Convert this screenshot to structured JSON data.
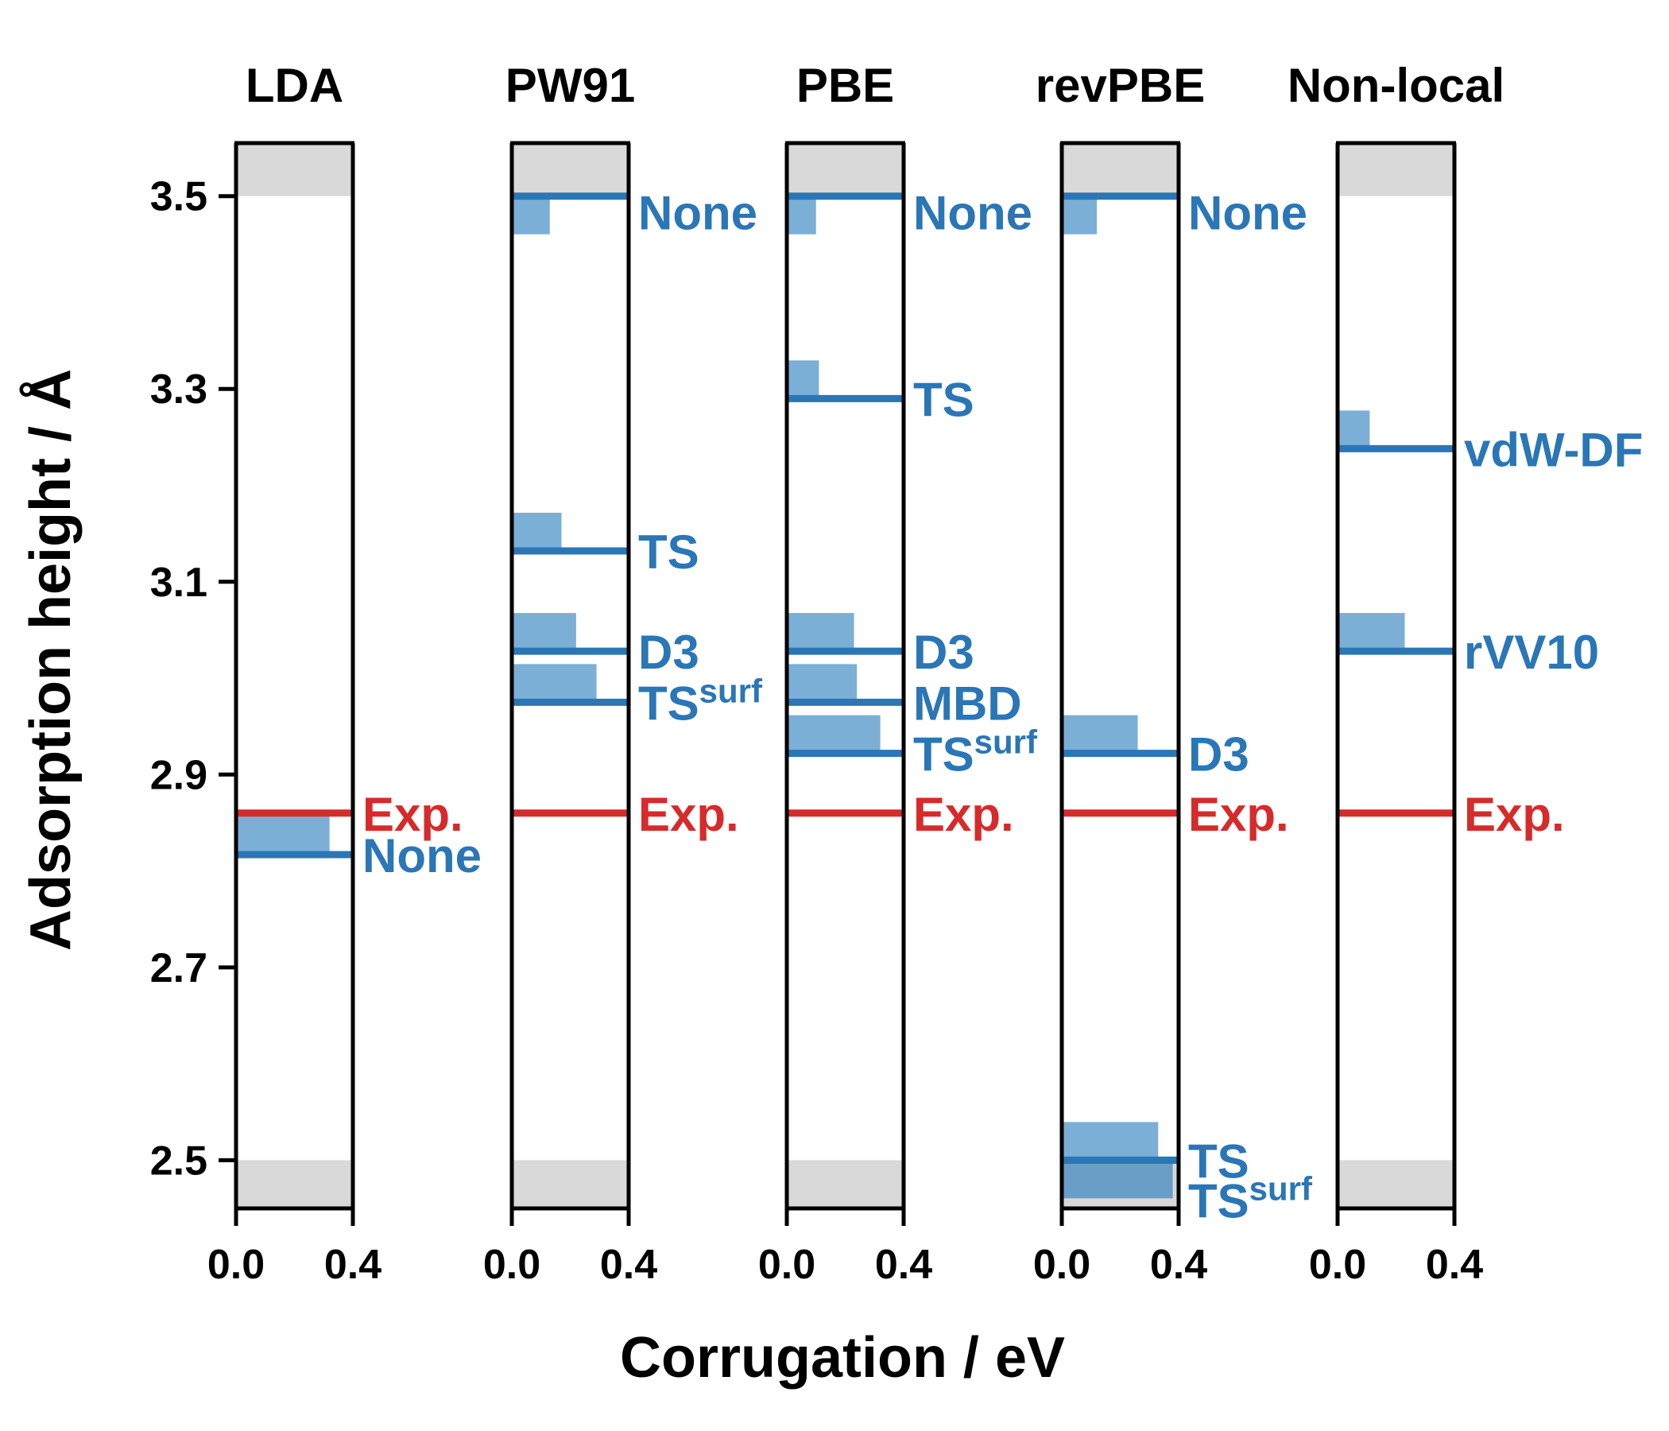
{
  "colors": {
    "method": "#2a76b6",
    "method_bar": "#7bafd6",
    "method_bar_overlap": "#6a9ec6",
    "experiment": "#d62b2b",
    "shade": "#d9d9d9",
    "axis": "#000000"
  },
  "chart_data": {
    "type": "bar",
    "xlabel": "Corrugation / eV",
    "ylabel": "Adsorption height / Å",
    "ylim": [
      2.45,
      3.555
    ],
    "y_ticks": [
      {
        "value": 2.5,
        "label": "2.5"
      },
      {
        "value": 2.7,
        "label": "2.7"
      },
      {
        "value": 2.9,
        "label": "2.9"
      },
      {
        "value": 3.1,
        "label": "3.1"
      },
      {
        "value": 3.3,
        "label": "3.3"
      },
      {
        "value": 3.5,
        "label": "3.5"
      }
    ],
    "x_ticks": [
      {
        "value": 0.0,
        "label": "0.0"
      },
      {
        "value": 0.4,
        "label": "0.4"
      }
    ],
    "xlim": [
      0.0,
      0.4
    ],
    "shaded_y_ranges": [
      [
        2.45,
        2.5
      ],
      [
        3.5,
        3.555
      ]
    ],
    "experiment_label": "Exp.",
    "experiment_height": 2.86,
    "panels": [
      {
        "title": "LDA",
        "methods": [
          {
            "name": "None",
            "sup": "",
            "height": 2.817,
            "corrugation": 0.32
          }
        ]
      },
      {
        "title": "PW91",
        "methods": [
          {
            "name": "None",
            "sup": "",
            "height": 3.5,
            "corrugation": 0.13
          },
          {
            "name": "TS",
            "sup": "",
            "height": 3.132,
            "corrugation": 0.17
          },
          {
            "name": "D3",
            "sup": "",
            "height": 3.028,
            "corrugation": 0.22
          },
          {
            "name": "TS",
            "sup": "surf",
            "height": 2.975,
            "corrugation": 0.29
          }
        ]
      },
      {
        "title": "PBE",
        "methods": [
          {
            "name": "None",
            "sup": "",
            "height": 3.5,
            "corrugation": 0.1
          },
          {
            "name": "TS",
            "sup": "",
            "height": 3.29,
            "corrugation": 0.11
          },
          {
            "name": "D3",
            "sup": "",
            "height": 3.028,
            "corrugation": 0.23
          },
          {
            "name": "MBD",
            "sup": "",
            "height": 2.975,
            "corrugation": 0.24
          },
          {
            "name": "TS",
            "sup": "surf",
            "height": 2.922,
            "corrugation": 0.32
          }
        ]
      },
      {
        "title": "revPBE",
        "methods": [
          {
            "name": "None",
            "sup": "",
            "height": 3.5,
            "corrugation": 0.12
          },
          {
            "name": "D3",
            "sup": "",
            "height": 2.922,
            "corrugation": 0.26
          },
          {
            "name": "TS",
            "sup": "",
            "height": 2.5,
            "corrugation": 0.33
          },
          {
            "name": "TS",
            "sup": "surf",
            "height": 2.5,
            "corrugation": 0.38
          }
        ]
      },
      {
        "title": "Non-local",
        "methods": [
          {
            "name": "vdW-DF",
            "sup": "",
            "height": 3.238,
            "corrugation": 0.11
          },
          {
            "name": "rVV10",
            "sup": "",
            "height": 3.028,
            "corrugation": 0.23
          }
        ]
      }
    ]
  }
}
